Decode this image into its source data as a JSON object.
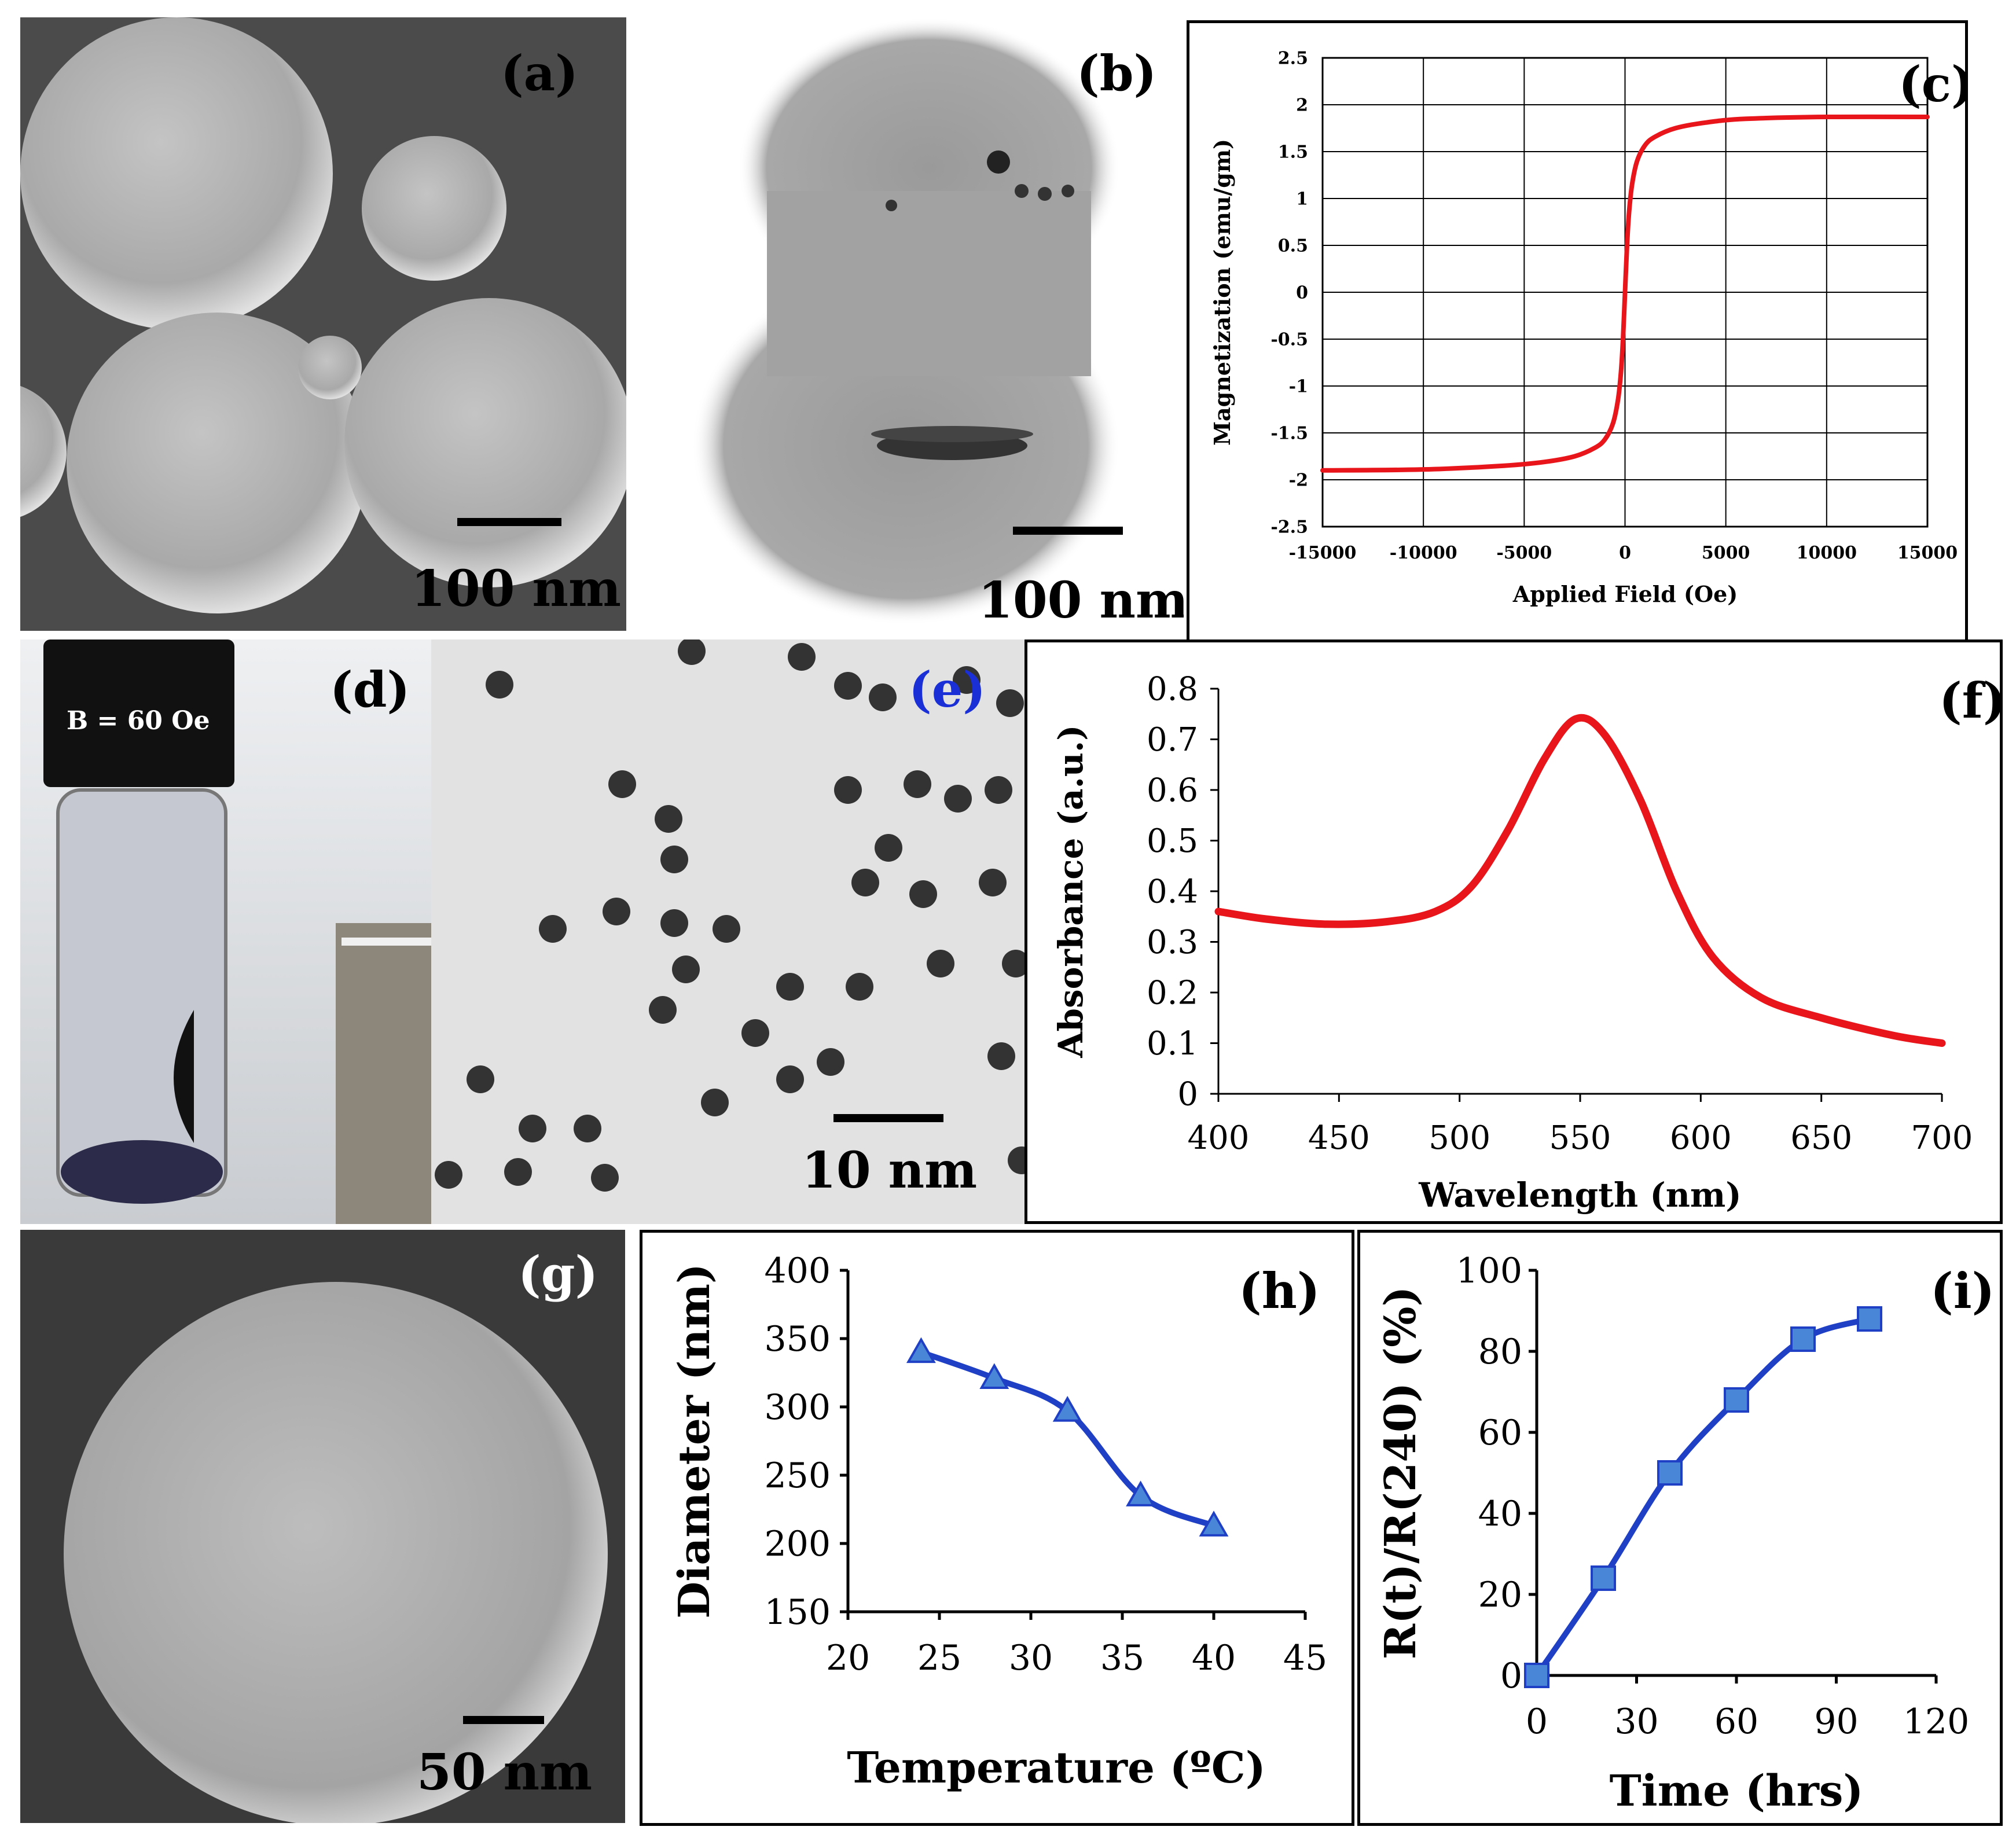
{
  "panels": {
    "a": {
      "label": "(a)",
      "scale": "100 nm"
    },
    "b": {
      "label": "(b)",
      "scale": "100 nm"
    },
    "d": {
      "label": "(d)",
      "cap_text": "B = 60 Oe"
    },
    "e": {
      "label": "(e)",
      "scale": "10 nm"
    },
    "g": {
      "label": "(g)",
      "scale": "50 nm"
    }
  },
  "colors": {
    "red_curve": "#e8151b",
    "blue_curve": "#1f3fc4",
    "marker_fill": "#4a86d8"
  },
  "chart_data": [
    {
      "id": "c",
      "label": "(c)",
      "type": "line",
      "title": "",
      "xlabel": "Applied Field (Oe)",
      "ylabel": "Magnetization  (emu/gm)",
      "xlim": [
        -15000,
        15000
      ],
      "ylim": [
        -2.5,
        2.5
      ],
      "grid": true,
      "xticks": [
        -15000,
        -10000,
        -5000,
        0,
        5000,
        10000,
        15000
      ],
      "yticks": [
        2.5,
        2,
        1.5,
        1,
        0.5,
        0,
        -0.5,
        -1,
        -1.5,
        -2,
        -2.5
      ],
      "x": [
        -15000,
        -10000,
        -6000,
        -4000,
        -2500,
        -1500,
        -1000,
        -600,
        -350,
        -200,
        -100,
        0,
        100,
        200,
        350,
        600,
        1000,
        1500,
        2500,
        4000,
        6000,
        10000,
        15000
      ],
      "y": [
        -1.9,
        -1.89,
        -1.85,
        -1.81,
        -1.75,
        -1.66,
        -1.57,
        -1.4,
        -1.15,
        -0.85,
        -0.5,
        0,
        0.5,
        0.85,
        1.15,
        1.4,
        1.57,
        1.66,
        1.75,
        1.81,
        1.85,
        1.87,
        1.87
      ]
    },
    {
      "id": "f",
      "label": "(f)",
      "type": "line",
      "title": "",
      "xlabel": "Wavelength (nm)",
      "ylabel": "Absorbance (a.u.)",
      "xlim": [
        400,
        700
      ],
      "ylim": [
        0,
        0.8
      ],
      "grid": false,
      "xticks": [
        400,
        450,
        500,
        550,
        600,
        650,
        700
      ],
      "yticks": [
        0,
        0.1,
        0.2,
        0.3,
        0.4,
        0.5,
        0.6,
        0.7,
        0.8
      ],
      "x": [
        400,
        420,
        445,
        470,
        490,
        505,
        520,
        535,
        548,
        560,
        575,
        590,
        605,
        625,
        650,
        680,
        700
      ],
      "y": [
        0.36,
        0.345,
        0.335,
        0.34,
        0.36,
        0.41,
        0.52,
        0.66,
        0.74,
        0.71,
        0.58,
        0.4,
        0.27,
        0.19,
        0.15,
        0.115,
        0.1
      ]
    },
    {
      "id": "h",
      "label": "(h)",
      "type": "line",
      "title": "",
      "xlabel": "Temperature (ºC)",
      "ylabel": "Diameter (nm)",
      "xlim": [
        20,
        45
      ],
      "ylim": [
        150,
        400
      ],
      "grid": false,
      "xticks": [
        20,
        25,
        30,
        35,
        40,
        45
      ],
      "yticks": [
        150,
        200,
        250,
        300,
        350,
        400
      ],
      "x": [
        24,
        28,
        32,
        36,
        40
      ],
      "y": [
        340,
        321,
        297,
        235,
        213
      ],
      "marker": "triangle"
    },
    {
      "id": "i",
      "label": "(i)",
      "type": "line",
      "title": "",
      "xlabel": "Time (hrs)",
      "ylabel": "R(t)/R(240) (%)",
      "xlim": [
        0,
        120
      ],
      "ylim": [
        0,
        100
      ],
      "grid": false,
      "xticks": [
        0,
        30,
        60,
        90,
        120
      ],
      "yticks": [
        0,
        20,
        40,
        60,
        80,
        100
      ],
      "x": [
        0,
        20,
        40,
        60,
        80,
        100
      ],
      "y": [
        0,
        24,
        50,
        68,
        83,
        88
      ],
      "marker": "square"
    }
  ]
}
